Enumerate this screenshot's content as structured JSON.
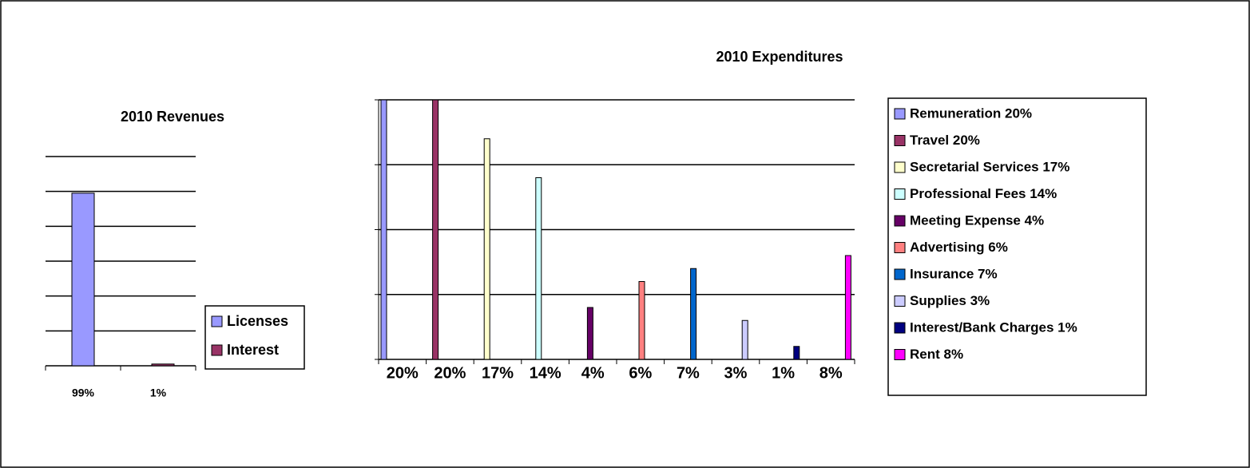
{
  "chart_data": [
    {
      "type": "bar",
      "title": "2010 Revenues",
      "categories": [
        "Licenses",
        "Interest"
      ],
      "values": [
        99,
        1
      ],
      "value_labels": [
        "99%",
        "1%"
      ],
      "colors": [
        "#9999ff",
        "#993366"
      ],
      "ylim": [
        0,
        120
      ],
      "yticks": [
        0,
        20,
        40,
        60,
        80,
        100,
        120
      ],
      "grid": true,
      "legend": "right"
    },
    {
      "type": "bar",
      "title": "2010 Expenditures",
      "categories": [
        "Remuneration  20%",
        "Travel  20%",
        "Secretarial Services 17%",
        "Professional Fees 14%",
        "Meeting Expense 4%",
        "Advertising 6%",
        "Insurance 7%",
        "Supplies 3%",
        "Interest/Bank Charges 1%",
        "Rent 8%"
      ],
      "values": [
        20,
        20,
        17,
        14,
        4,
        6,
        7,
        3,
        1,
        8
      ],
      "value_labels": [
        "20%",
        "20%",
        "17%",
        "14%",
        "4%",
        "6%",
        "7%",
        "3%",
        "1%",
        "8%"
      ],
      "colors": [
        "#9999ff",
        "#993366",
        "#ffffcc",
        "#ccffff",
        "#660066",
        "#ff8080",
        "#0066cc",
        "#ccccff",
        "#000080",
        "#ff00ff"
      ],
      "ylim": [
        0,
        20
      ],
      "yticks": [
        0,
        5,
        10,
        15,
        20
      ],
      "grid": true,
      "legend": "right"
    }
  ]
}
